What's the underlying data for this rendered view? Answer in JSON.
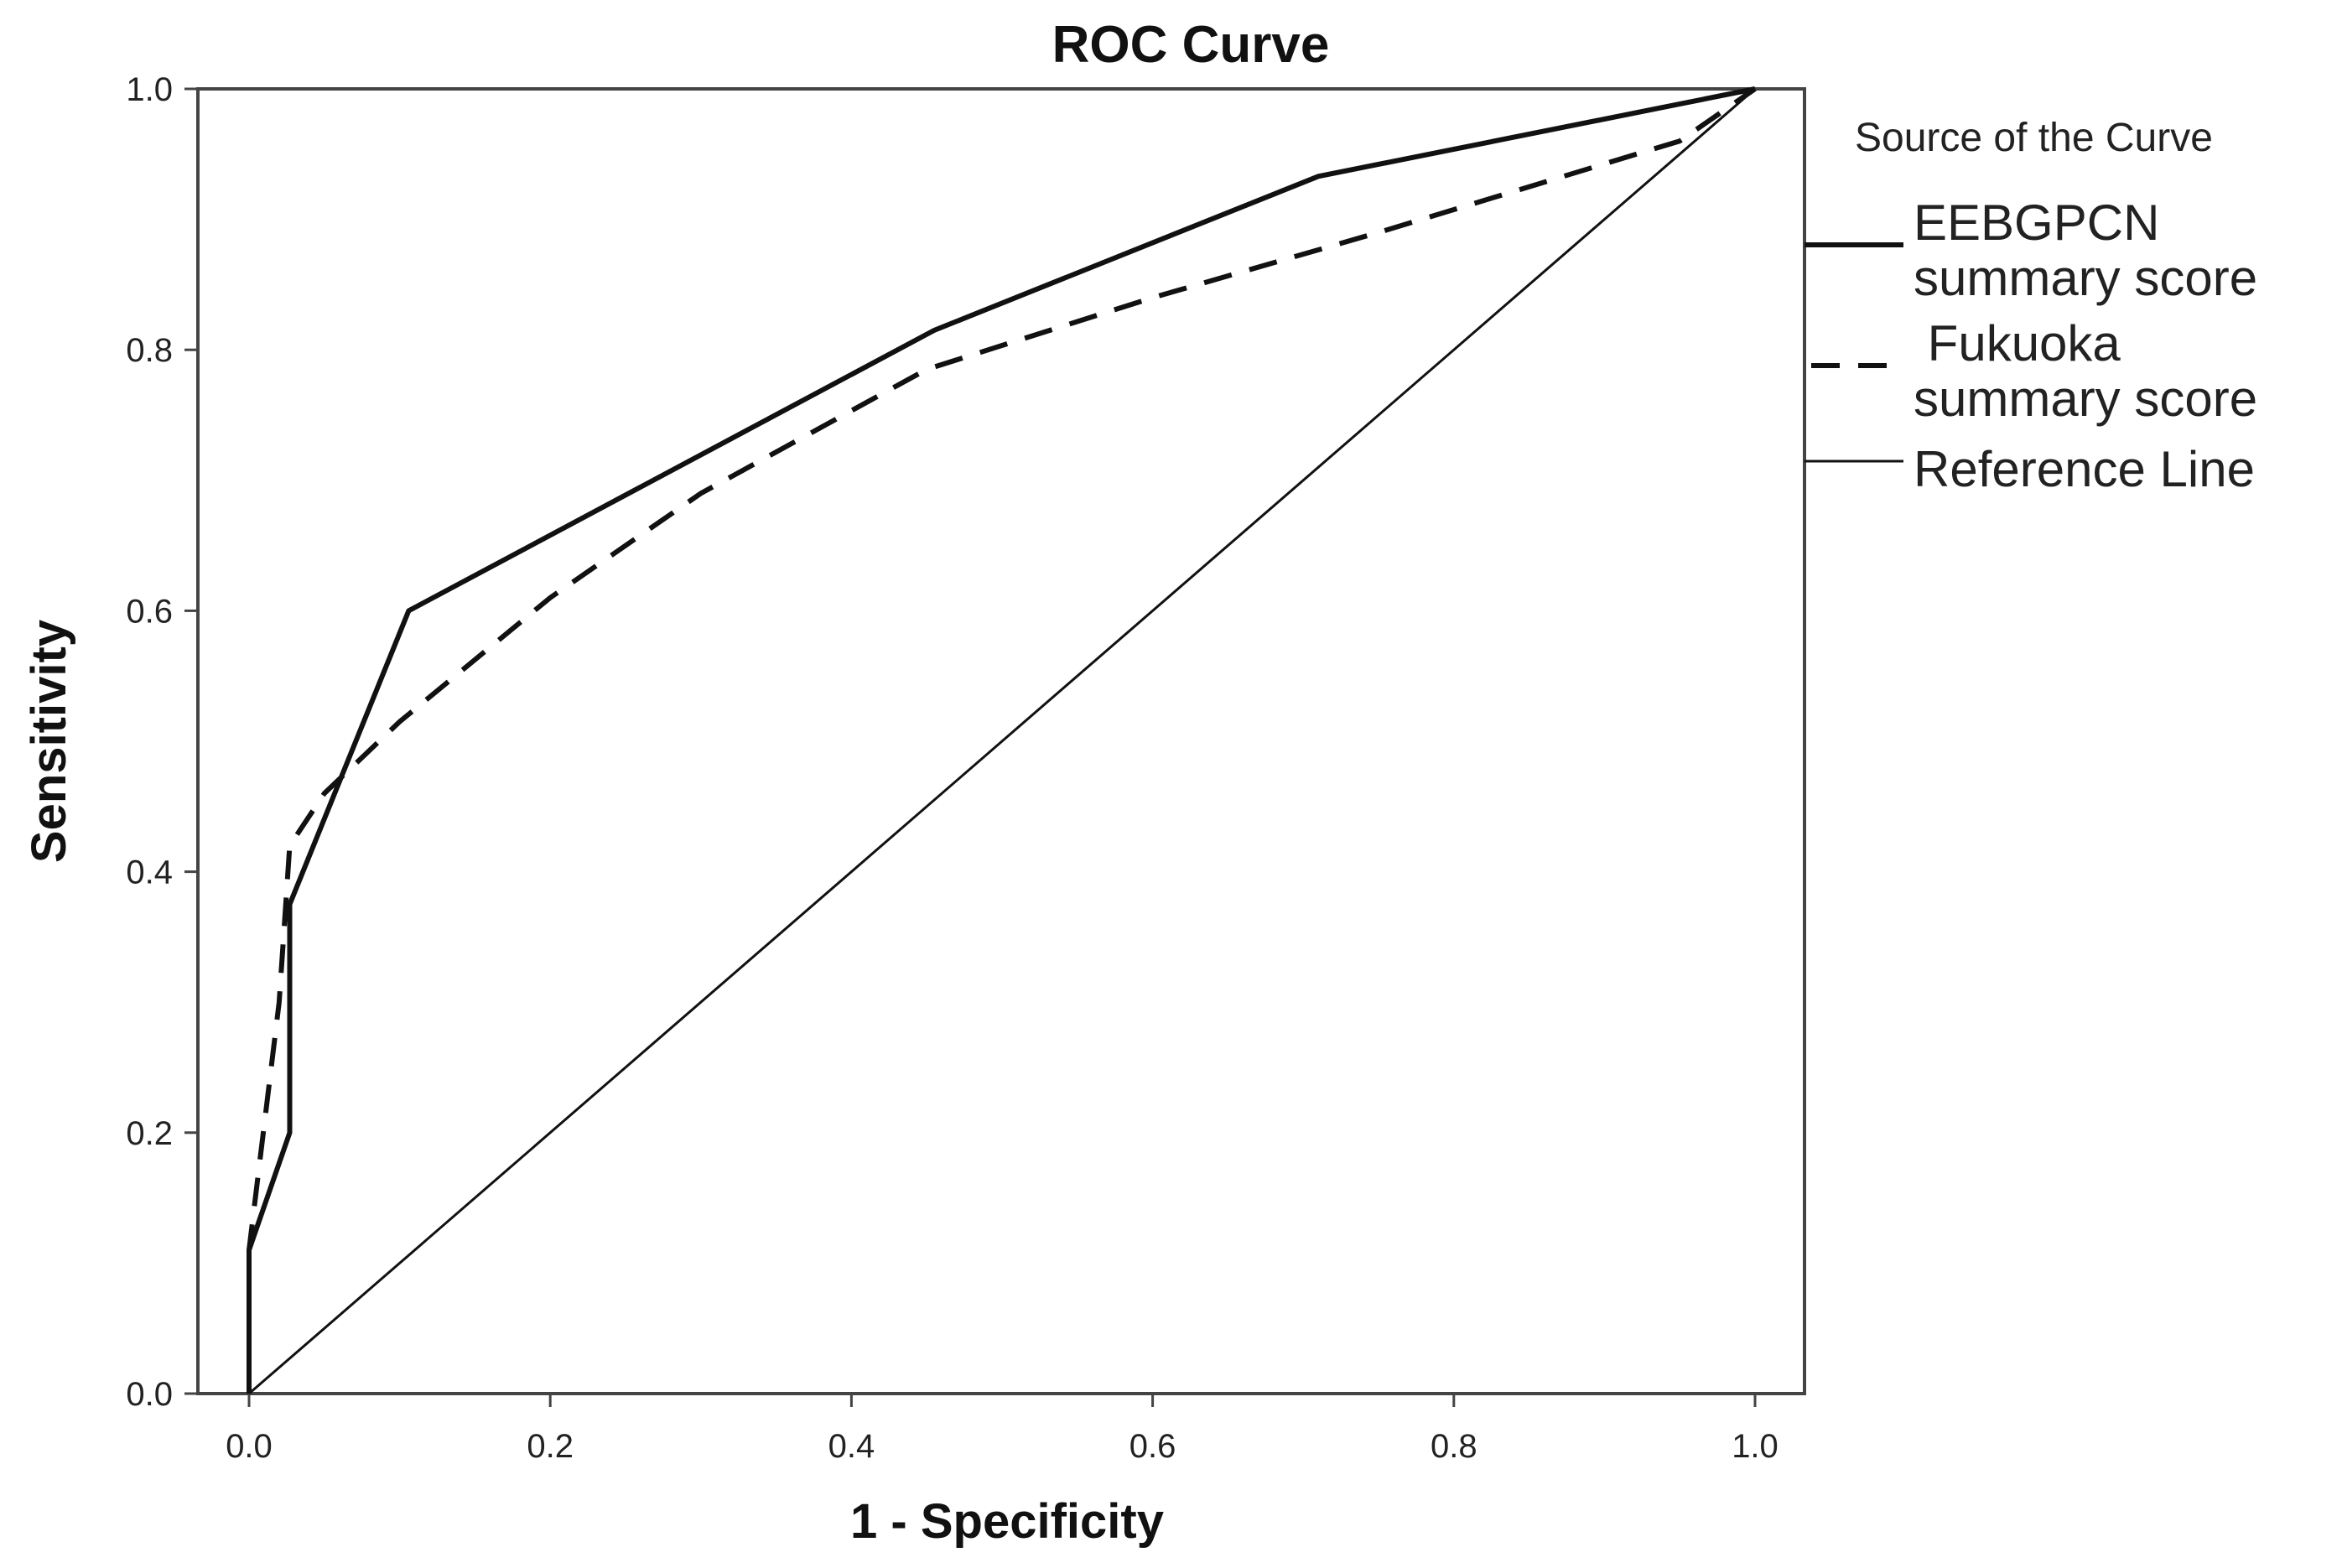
{
  "chart_data": {
    "type": "line",
    "title": "ROC Curve",
    "xlabel": "1 - Specificity",
    "ylabel": "Sensitivity",
    "xlim": [
      0.0,
      1.0
    ],
    "ylim": [
      0.0,
      1.0
    ],
    "xticks": [
      "0.0",
      "0.2",
      "0.4",
      "0.6",
      "0.8",
      "1.0"
    ],
    "yticks": [
      "0.0",
      "0.2",
      "0.4",
      "0.6",
      "0.8",
      "1.0"
    ],
    "grid": false,
    "legend_title": "Source of the Curve",
    "legend_position": "right",
    "series": [
      {
        "name": "EEBGPCN summary score",
        "legend_lines": [
          "EEBGPCN",
          "summary score"
        ],
        "style": "solid-bold",
        "color": "#111111",
        "x": [
          0.0,
          0.0,
          0.027,
          0.027,
          0.106,
          0.455,
          0.71,
          1.0
        ],
        "y": [
          0.0,
          0.11,
          0.2,
          0.375,
          0.6,
          0.815,
          0.933,
          1.0
        ]
      },
      {
        "name": "Fukuoka summary score",
        "legend_lines": [
          " Fukuoka",
          "summary score"
        ],
        "style": "dashed",
        "color": "#111111",
        "x": [
          0.0,
          0.0,
          0.02,
          0.027,
          0.05,
          0.1,
          0.2,
          0.3,
          0.45,
          0.6,
          0.75,
          0.95,
          1.0
        ],
        "y": [
          0.0,
          0.11,
          0.3,
          0.42,
          0.46,
          0.515,
          0.61,
          0.69,
          0.785,
          0.84,
          0.89,
          0.96,
          1.0
        ]
      },
      {
        "name": "Reference Line",
        "legend_lines": [
          "Reference Line"
        ],
        "style": "solid-thin",
        "color": "#111111",
        "x": [
          0.0,
          1.0
        ],
        "y": [
          0.0,
          1.0
        ]
      }
    ]
  }
}
